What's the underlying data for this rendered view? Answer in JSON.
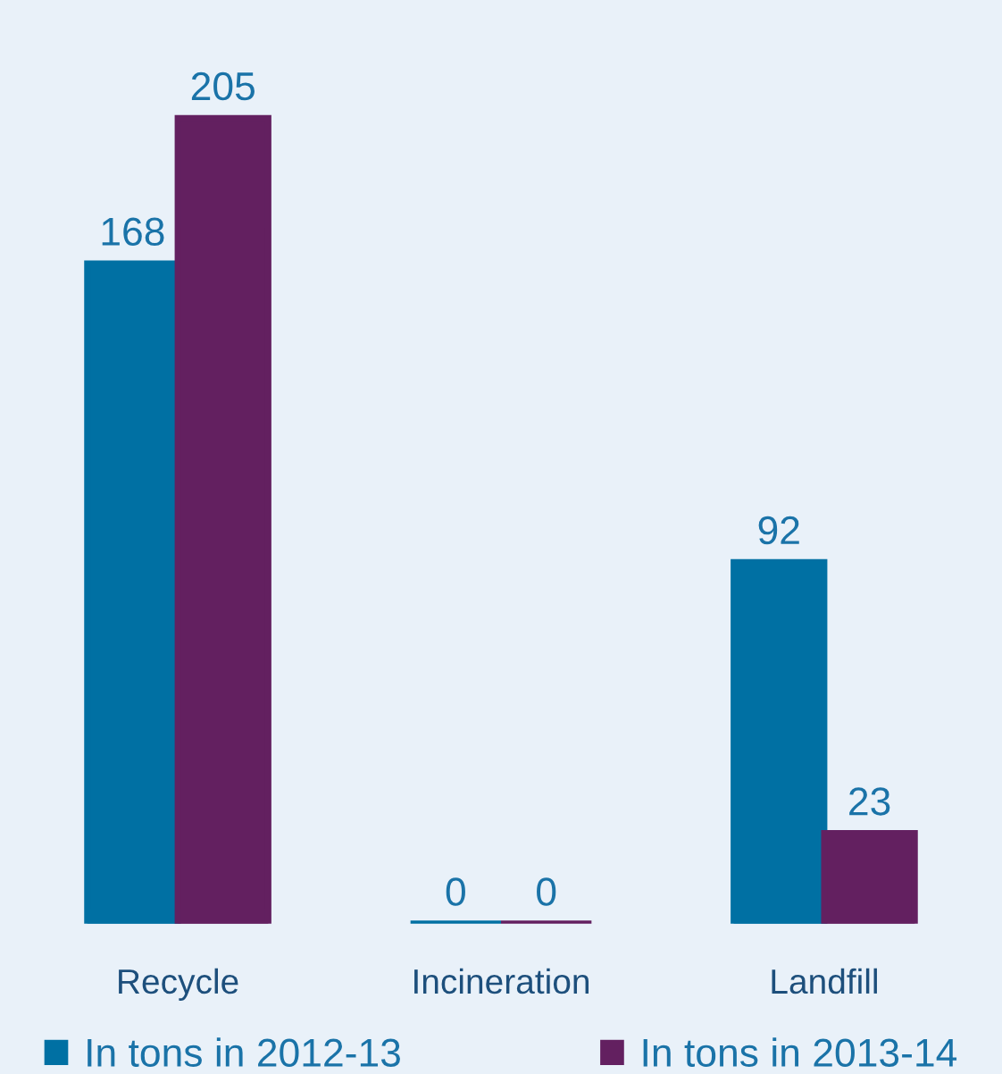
{
  "chart_data": {
    "type": "bar",
    "categories": [
      "Recycle",
      "Incineration",
      "Landfill"
    ],
    "series": [
      {
        "name": "In tons in 2012-13",
        "color": "#0070a3",
        "values": [
          168,
          0,
          92
        ]
      },
      {
        "name": "In tons in 2013-14",
        "color": "#632060",
        "values": [
          205,
          0,
          23
        ]
      }
    ],
    "data_labels": true,
    "legend": "bottom",
    "grid": false
  }
}
